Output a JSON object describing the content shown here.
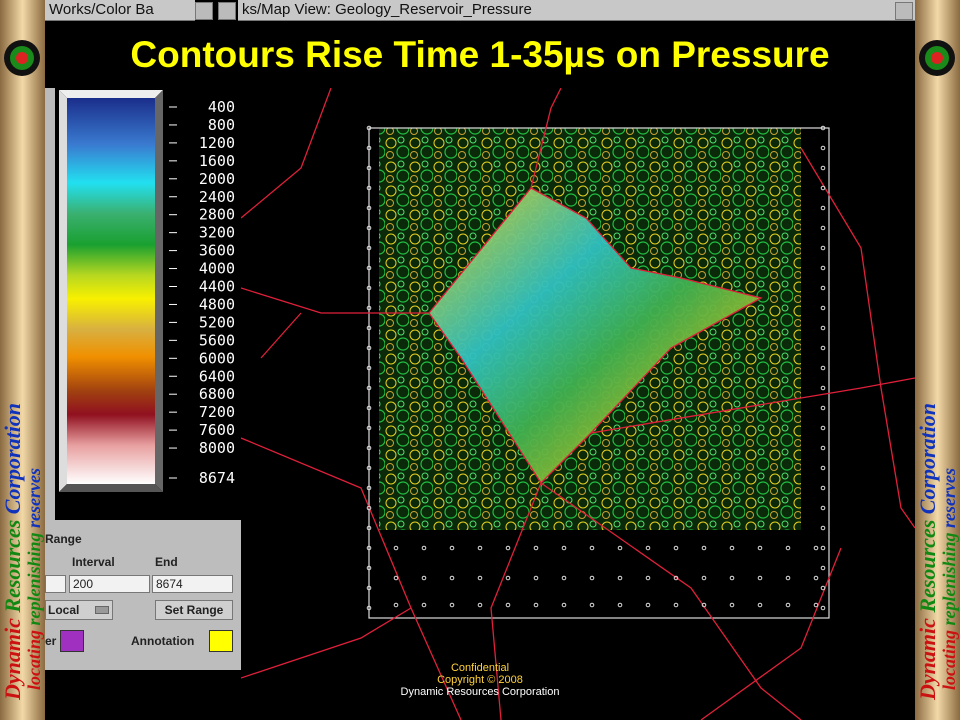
{
  "window_titles": [
    "Works/Color Ba",
    "ks/Map View: Geology_Reservoir_Pressure"
  ],
  "title": "Contours Rise Time 1-35µs on Pressure",
  "color_bar": {
    "labels": [
      "400",
      "800",
      "1200",
      "1600",
      "2000",
      "2400",
      "2800",
      "3200",
      "3600",
      "4000",
      "4400",
      "4800",
      "5200",
      "5600",
      "6000",
      "6400",
      "6800",
      "7200",
      "7600",
      "8000",
      "8674"
    ]
  },
  "range_panel": {
    "heading": "Range",
    "interval_label": "Interval",
    "end_label": "End",
    "interval_value": "200",
    "end_value": "8674",
    "mode": "Local",
    "button": "Set Range",
    "color_label_1": "er",
    "color_label_2": "Annotation"
  },
  "footer": [
    "Confidential",
    "Copyright © 2008",
    "Dynamic Resources Corporation"
  ],
  "banner": {
    "company_words": [
      "Dynamic",
      "Resources",
      "Corporation"
    ],
    "tagline_words": [
      "locating",
      "replenishing",
      "reserves"
    ]
  }
}
